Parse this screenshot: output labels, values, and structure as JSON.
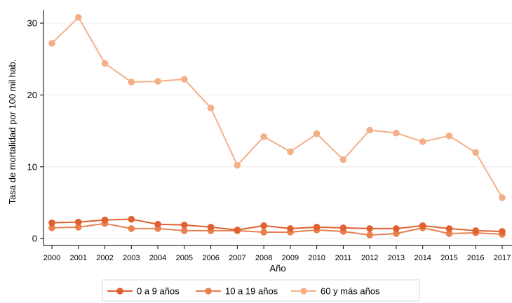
{
  "chart_data": {
    "type": "line",
    "xlabel": "Año",
    "ylabel": "Tasa de mortalidad por 100 mil hab.",
    "x": [
      2000,
      2001,
      2002,
      2003,
      2004,
      2005,
      2006,
      2007,
      2008,
      2009,
      2010,
      2011,
      2012,
      2013,
      2014,
      2015,
      2016,
      2017
    ],
    "ylim": [
      0,
      32
    ],
    "yticks": [
      0,
      10,
      20,
      30
    ],
    "grid": true,
    "legend_position": "bottom",
    "series": [
      {
        "name": "0 a 9 años",
        "color": "#e06030",
        "values": [
          2.2,
          2.3,
          2.6,
          2.7,
          2.0,
          1.9,
          1.6,
          1.2,
          1.8,
          1.4,
          1.6,
          1.5,
          1.4,
          1.4,
          1.8,
          1.4,
          1.1,
          1.0
        ]
      },
      {
        "name": "10 a 19 años",
        "color": "#e8804f",
        "values": [
          1.5,
          1.6,
          2.1,
          1.4,
          1.4,
          1.1,
          1.1,
          1.1,
          0.9,
          0.9,
          1.2,
          1.0,
          0.5,
          0.7,
          1.5,
          0.7,
          0.8,
          0.6
        ]
      },
      {
        "name": "60 y más años",
        "color": "#f2b088",
        "values": [
          27.2,
          30.8,
          24.4,
          21.8,
          21.9,
          22.2,
          18.2,
          10.2,
          14.2,
          12.1,
          14.6,
          11.0,
          15.1,
          14.7,
          13.5,
          14.3,
          12.0,
          5.7
        ]
      }
    ]
  }
}
